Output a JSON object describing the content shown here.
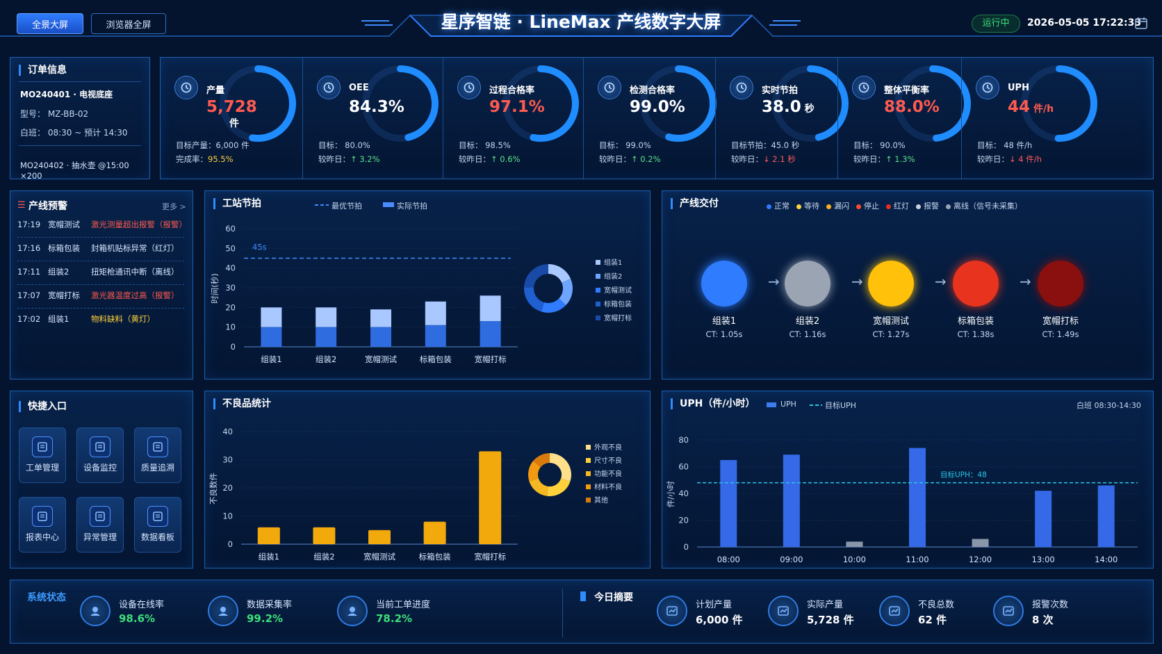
{
  "header": {
    "title": "星序智链 · LineMax 产线数字大屏",
    "btn_fullscreen": "全景大屏",
    "btn_browser": "浏览器全屏",
    "status": "运行中",
    "datetime": "2026-05-05 17:22:33",
    "calendar_icon": "calendar-icon"
  },
  "order": {
    "title": "订单信息",
    "current": "MO240401 · 电视底座",
    "model": "型号：  MZ-BB-02",
    "shift": "白班：  08:30 ~ 预计 14:30",
    "next": "MO240402 · 抽水壶 @15:00 ×200"
  },
  "kpis": [
    {
      "name": "产量",
      "value": "5,728",
      "unit": "件",
      "color": "#ff5a4f",
      "line1": "目标产量：6,000 件",
      "line2_label": "完成率：",
      "line2_value": "95.5%",
      "line2_class": "yel",
      "icon": "target-icon",
      "ring": 0.955
    },
    {
      "name": "OEE",
      "value": "84.3%",
      "unit": "",
      "color": "#ffffff",
      "line1": "目标：  80.0%",
      "line2_label": "较昨日：",
      "line2_value": "↑ 3.2%",
      "line2_class": "up",
      "icon": "gauge-icon",
      "ring": 0.843
    },
    {
      "name": "过程合格率",
      "value": "97.1%",
      "unit": "",
      "color": "#ff5a4f",
      "line1": "目标：  98.5%",
      "line2_label": "较昨日：",
      "line2_value": "↑ 0.6%",
      "line2_class": "up",
      "icon": "check-chart-icon",
      "ring": 0.971
    },
    {
      "name": "检测合格率",
      "value": "99.0%",
      "unit": "",
      "color": "#ffffff",
      "line1": "目标：  99.0%",
      "line2_label": "较昨日：",
      "line2_value": "↑ 0.2%",
      "line2_class": "up",
      "icon": "inspect-icon",
      "ring": 0.99
    },
    {
      "name": "实时节拍",
      "value": "38.0",
      "unit": "秒",
      "color": "#ffffff",
      "line1": "目标节拍：45.0 秒",
      "line2_label": "较昨日：",
      "line2_value": "↓ 2.1 秒",
      "line2_class": "down",
      "icon": "timer-icon",
      "ring": 0.84
    },
    {
      "name": "整体平衡率",
      "value": "88.0%",
      "unit": "",
      "color": "#ff5a4f",
      "line1": "目标：  90.0%",
      "line2_label": "较昨日：",
      "line2_value": "↑ 1.3%",
      "line2_class": "up",
      "icon": "balance-icon",
      "ring": 0.88
    },
    {
      "name": "UPH",
      "value": "44",
      "unit": "件/h",
      "color": "#ff5a4f",
      "line1": "目标：  48 件/h",
      "line2_label": "较昨日：",
      "line2_value": "↓ 4 件/h",
      "line2_class": "down",
      "icon": "clock-icon",
      "ring": 0.917
    }
  ],
  "warnings": {
    "title": "产线预警",
    "more": "更多 >",
    "items": [
      {
        "time": "17:19",
        "station": "宽帽测试",
        "msg": "激光测量超出报警（报警）",
        "color": "#ff5a4f"
      },
      {
        "time": "17:16",
        "station": "标箱包装",
        "msg": "封箱机贴标异常（红灯）",
        "color": "#d6e6ff"
      },
      {
        "time": "17:11",
        "station": "组装2",
        "msg": "扭矩枪通讯中断（离线）",
        "color": "#d6e6ff"
      },
      {
        "time": "17:07",
        "station": "宽帽打标",
        "msg": "激光器温度过高（报警）",
        "color": "#ff5a4f"
      },
      {
        "time": "17:02",
        "station": "组装1",
        "msg": "物料缺料（黄灯）",
        "color": "#ffd23b"
      }
    ]
  },
  "cycle": {
    "title": "工站节拍",
    "legend_best": "最优节拍",
    "legend_actual": "实际节拍",
    "ylabel": "时间(秒)",
    "target_label": "45s",
    "donut_legend": [
      "组装1",
      "组装2",
      "宽帽测试",
      "标箱包装",
      "宽帽打标"
    ]
  },
  "delivery": {
    "title": "产线交付",
    "legend": [
      {
        "label": "正常",
        "color": "#2f7cff"
      },
      {
        "label": "等待",
        "color": "#ffd23b"
      },
      {
        "label": "漏闪",
        "color": "#ffb020"
      },
      {
        "label": "停止",
        "color": "#ff4a2a"
      },
      {
        "label": "红灯",
        "color": "#e8301f"
      },
      {
        "label": "报警",
        "color": "#c9d1dc"
      },
      {
        "label": "离线（信号未采集）",
        "color": "#9aa4b3"
      }
    ],
    "nodes": [
      {
        "name": "组装1",
        "ct": "CT: 1.05s",
        "color": "#2f7cff"
      },
      {
        "name": "组装2",
        "ct": "CT: 1.16s",
        "color": "#9aa4b3"
      },
      {
        "name": "宽帽测试",
        "ct": "CT: 1.27s",
        "color": "#ffc10a"
      },
      {
        "name": "标箱包装",
        "ct": "CT: 1.38s",
        "color": "#e8341f"
      },
      {
        "name": "宽帽打标",
        "ct": "CT: 1.49s",
        "color": "#8a0f0f"
      }
    ]
  },
  "quick": {
    "title": "快捷入口",
    "items": [
      {
        "label": "工单管理",
        "icon": "work-order-icon"
      },
      {
        "label": "设备监控",
        "icon": "device-monitor-icon"
      },
      {
        "label": "质量追溯",
        "icon": "quality-trace-icon"
      },
      {
        "label": "报表中心",
        "icon": "report-icon"
      },
      {
        "label": "异常管理",
        "icon": "exception-icon"
      },
      {
        "label": "数据看板",
        "icon": "dashboard-icon"
      }
    ]
  },
  "defects": {
    "title": "不良品统计",
    "ylabel": "不良数件",
    "donut_legend": [
      "外观不良",
      "尺寸不良",
      "功能不良",
      "材料不良",
      "其他"
    ]
  },
  "uph": {
    "title": "UPH（件/小时）",
    "legend_uph": "UPH",
    "legend_target": "目标UPH",
    "shift": "白班 08:30-14:30",
    "ylabel": "件/小时",
    "target_label": "目标UPH：48"
  },
  "system": {
    "title": "系统状态",
    "items": [
      {
        "label": "设备在线率",
        "value": "98.6%",
        "icon": "device-online-icon"
      },
      {
        "label": "数据采集率",
        "value": "99.2%",
        "icon": "data-collect-icon"
      },
      {
        "label": "当前工单进度",
        "value": "78.2%",
        "icon": "order-progress-icon"
      }
    ]
  },
  "summary": {
    "title": "今日摘要",
    "items": [
      {
        "label": "计划产量",
        "value": "6,000 件",
        "icon": "plan-icon"
      },
      {
        "label": "实际产量",
        "value": "5,728 件",
        "icon": "actual-icon"
      },
      {
        "label": "不良总数",
        "value": "62 件",
        "icon": "defect-icon"
      },
      {
        "label": "报警次数",
        "value": "8 次",
        "icon": "alarm-icon"
      }
    ]
  },
  "chart_data": [
    {
      "type": "bar",
      "title": "工站节拍",
      "categories": [
        "组装1",
        "组装2",
        "宽帽测试",
        "标箱包装",
        "宽帽打标"
      ],
      "series": [
        {
          "name": "最优节拍",
          "values": [
            10,
            10,
            10,
            11,
            13
          ]
        },
        {
          "name": "实际节拍",
          "values": [
            20,
            20,
            19,
            23,
            26
          ]
        }
      ],
      "target": 45,
      "ylabel": "时间(秒)",
      "ylim": [
        0,
        60
      ],
      "yticks": [
        0,
        10,
        20,
        30,
        40,
        50,
        60
      ]
    },
    {
      "type": "pie",
      "title": "",
      "labels": [
        "组装1",
        "组装2",
        "宽帽测试",
        "标箱包装",
        "宽帽打标"
      ],
      "values": [
        20,
        20,
        19,
        23,
        26
      ]
    },
    {
      "type": "bar",
      "title": "不良品统计",
      "categories": [
        "组装1",
        "组装2",
        "宽帽测试",
        "标箱包装",
        "宽帽打标"
      ],
      "values": [
        6,
        6,
        5,
        8,
        33
      ],
      "ylabel": "不良数件",
      "ylim": [
        0,
        40
      ],
      "yticks": [
        0,
        10,
        20,
        30,
        40
      ]
    },
    {
      "type": "pie",
      "title": "",
      "labels": [
        "外观不良",
        "尺寸不良",
        "功能不良",
        "材料不良",
        "其他"
      ],
      "values": [
        30,
        22,
        18,
        16,
        14
      ]
    },
    {
      "type": "bar",
      "title": "UPH（件/小时）",
      "categories": [
        "08:00",
        "09:00",
        "10:00",
        "11:00",
        "12:00",
        "13:00",
        "14:00"
      ],
      "values": [
        65,
        69,
        4,
        74,
        6,
        42,
        46
      ],
      "target": 48,
      "ylabel": "件/小时",
      "ylim": [
        0,
        80
      ],
      "yticks": [
        0,
        20,
        40,
        60,
        80
      ]
    }
  ]
}
